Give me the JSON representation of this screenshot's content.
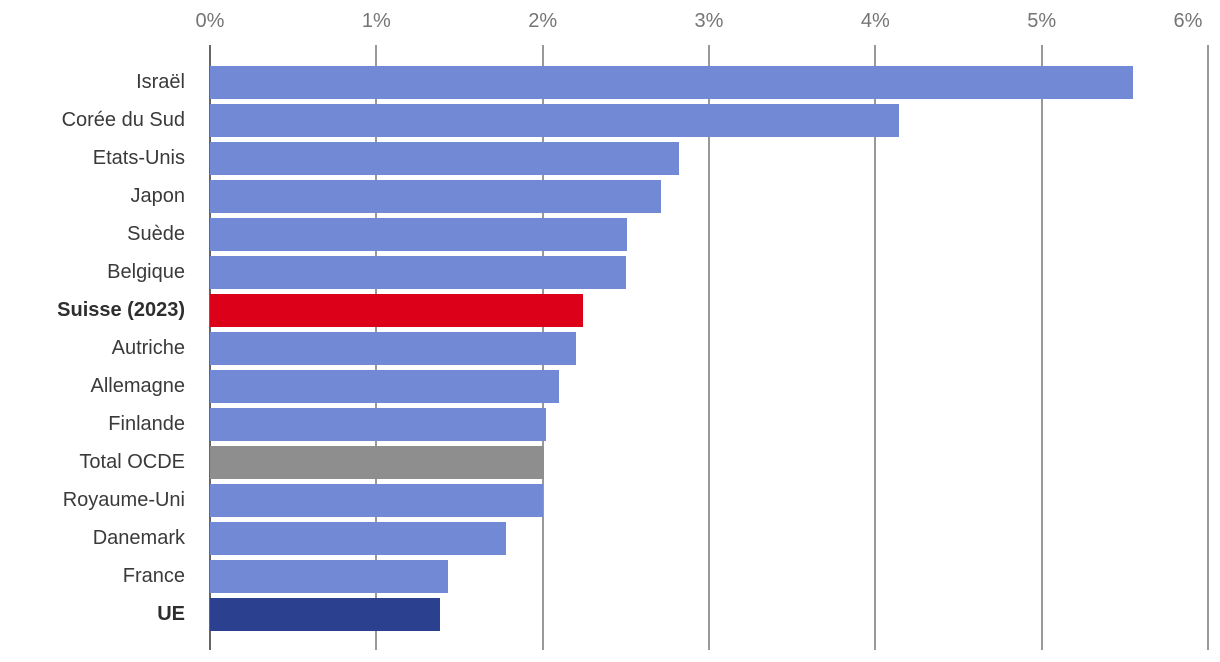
{
  "chart_data": {
    "type": "bar",
    "orientation": "horizontal",
    "title": "",
    "xlabel": "",
    "ylabel": "",
    "unit": "%",
    "xlim": [
      0,
      6
    ],
    "grid": true,
    "legend": "none",
    "x_ticks": [
      {
        "value": 0,
        "label": "0%"
      },
      {
        "value": 1,
        "label": "1%"
      },
      {
        "value": 2,
        "label": "2%"
      },
      {
        "value": 3,
        "label": "3%"
      },
      {
        "value": 4,
        "label": "4%"
      },
      {
        "value": 5,
        "label": "5%"
      },
      {
        "value": 6,
        "label": "6%"
      }
    ],
    "bars": [
      {
        "label": "Israël",
        "value": 5.55,
        "color": "#7289d6",
        "bold": false
      },
      {
        "label": "Corée du Sud",
        "value": 4.14,
        "color": "#7289d6",
        "bold": false
      },
      {
        "label": "Etats-Unis",
        "value": 2.82,
        "color": "#7289d6",
        "bold": false
      },
      {
        "label": "Japon",
        "value": 2.71,
        "color": "#7289d6",
        "bold": false
      },
      {
        "label": "Suède",
        "value": 2.51,
        "color": "#7289d6",
        "bold": false
      },
      {
        "label": "Belgique",
        "value": 2.5,
        "color": "#7289d6",
        "bold": false
      },
      {
        "label": "Suisse (2023)",
        "value": 2.24,
        "color": "#dc0018",
        "bold": true
      },
      {
        "label": "Autriche",
        "value": 2.2,
        "color": "#7289d6",
        "bold": false
      },
      {
        "label": "Allemagne",
        "value": 2.1,
        "color": "#7289d6",
        "bold": false
      },
      {
        "label": "Finlande",
        "value": 2.02,
        "color": "#7289d6",
        "bold": false
      },
      {
        "label": "Total OCDE",
        "value": 2.01,
        "color": "#8e8e8e",
        "bold": false
      },
      {
        "label": "Royaume-Uni",
        "value": 2.0,
        "color": "#7289d6",
        "bold": false
      },
      {
        "label": "Danemark",
        "value": 1.78,
        "color": "#7289d6",
        "bold": false
      },
      {
        "label": "France",
        "value": 1.43,
        "color": "#7289d6",
        "bold": false
      },
      {
        "label": "UE",
        "value": 1.38,
        "color": "#2b4190",
        "bold": true
      }
    ],
    "colors": {
      "bar_default": "#7289d6",
      "bar_highlight_switzerland": "#dc0018",
      "bar_aggregate_oecd": "#8e8e8e",
      "bar_eu": "#2b4190",
      "gridline": "#999999",
      "zero_axis_line": "#666666",
      "tick_label": "#757575",
      "category_label": "#3a3a3a",
      "background": "#ffffff"
    }
  }
}
